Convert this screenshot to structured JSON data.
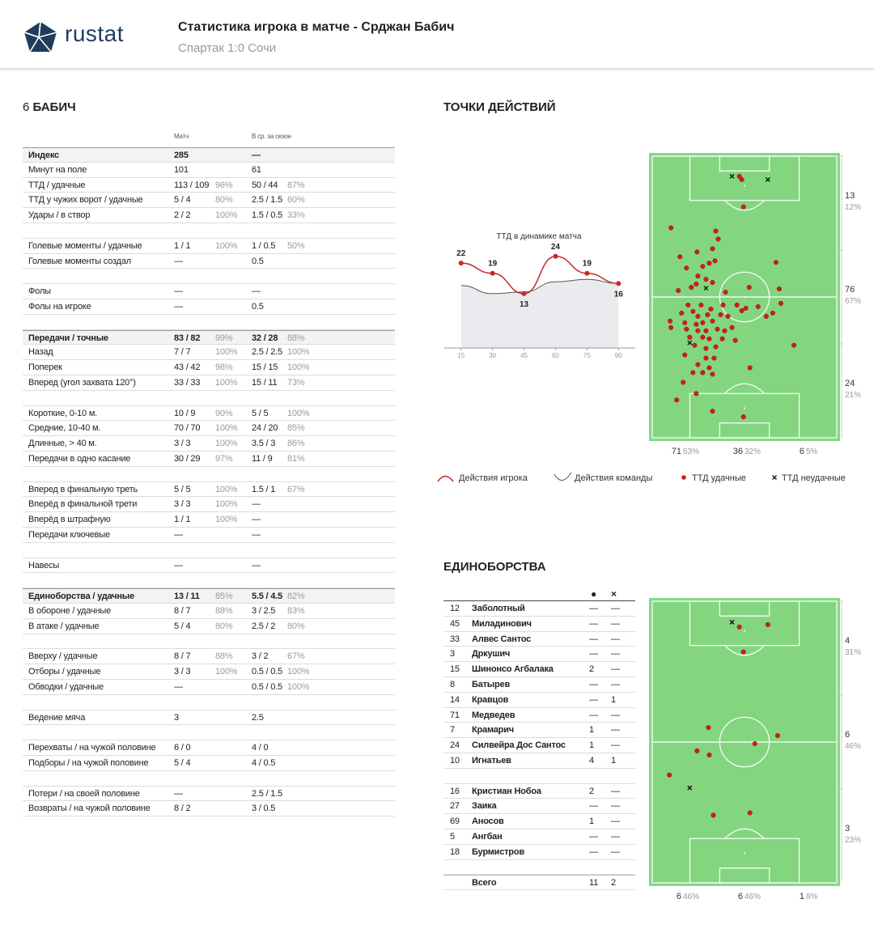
{
  "header": {
    "logo": "rustat",
    "title": "Статистика игрока в матче - Срджан Бабич",
    "subtitle": "Спартак 1:0 Сочи"
  },
  "player": {
    "number": "6",
    "name": "БАБИЧ"
  },
  "stats": {
    "columns": [
      "Матч",
      "В ср. за сезон"
    ],
    "groups": [
      [
        {
          "label": "Индекс",
          "match": "285",
          "season": "—",
          "bold": true
        },
        {
          "label": "Минут на поле",
          "match": "101",
          "season": "61"
        },
        {
          "label": "ТТД / удачные",
          "match": "113 / 109",
          "match_pct": "96%",
          "season": "50 / 44",
          "season_pct": "87%"
        },
        {
          "label": "ТТД у чужих ворот / удачные",
          "match": "5 / 4",
          "match_pct": "80%",
          "season": "2.5 / 1.5",
          "season_pct": "60%"
        },
        {
          "label": "Удары / в створ",
          "match": "2 / 2",
          "match_pct": "100%",
          "season": "1.5 / 0.5",
          "season_pct": "33%"
        }
      ],
      [
        {
          "label": "Голевые моменты / удачные",
          "match": "1 / 1",
          "match_pct": "100%",
          "season": "1 / 0.5",
          "season_pct": "50%"
        },
        {
          "label": "Голевые моменты создал",
          "match": "—",
          "season": "0.5"
        }
      ],
      [
        {
          "label": "Фолы",
          "match": "—",
          "season": "—"
        },
        {
          "label": "Фолы на игроке",
          "match": "—",
          "season": "0.5"
        }
      ],
      [
        {
          "label": "Передачи / точные",
          "match": "83 / 82",
          "match_pct": "99%",
          "season": "32 / 28",
          "season_pct": "88%",
          "bold": true
        },
        {
          "label": "Назад",
          "match": "7 / 7",
          "match_pct": "100%",
          "season": "2.5 / 2.5",
          "season_pct": "100%"
        },
        {
          "label": "Поперек",
          "match": "43 / 42",
          "match_pct": "98%",
          "season": "15 / 15",
          "season_pct": "100%"
        },
        {
          "label": "Вперед (угол захвата 120°)",
          "match": "33 / 33",
          "match_pct": "100%",
          "season": "15 / 11",
          "season_pct": "73%"
        }
      ],
      [
        {
          "label": "Короткие, 0-10 м.",
          "match": "10 / 9",
          "match_pct": "90%",
          "season": "5 / 5",
          "season_pct": "100%"
        },
        {
          "label": "Средние, 10-40 м.",
          "match": "70 / 70",
          "match_pct": "100%",
          "season": "24 / 20",
          "season_pct": "85%"
        },
        {
          "label": "Длинные, > 40 м.",
          "match": "3 / 3",
          "match_pct": "100%",
          "season": "3.5 / 3",
          "season_pct": "86%"
        },
        {
          "label": "Передачи в одно касание",
          "match": "30 / 29",
          "match_pct": "97%",
          "season": "11 / 9",
          "season_pct": "81%"
        }
      ],
      [
        {
          "label": "Вперед в финальную треть",
          "match": "5 / 5",
          "match_pct": "100%",
          "season": "1.5 / 1",
          "season_pct": "67%"
        },
        {
          "label": "Вперёд в финальной трети",
          "match": "3 / 3",
          "match_pct": "100%",
          "season": "—"
        },
        {
          "label": "Вперёд в штрафную",
          "match": "1 / 1",
          "match_pct": "100%",
          "season": "—"
        },
        {
          "label": "Передачи ключевые",
          "match": "—",
          "season": "—"
        }
      ],
      [
        {
          "label": "Навесы",
          "match": "—",
          "season": "—"
        }
      ],
      [
        {
          "label": "Единоборства / удачные",
          "match": "13 / 11",
          "match_pct": "85%",
          "season": "5.5 / 4.5",
          "season_pct": "82%",
          "bold": true
        },
        {
          "label": "В обороне / удачные",
          "match": "8 / 7",
          "match_pct": "88%",
          "season": "3 / 2.5",
          "season_pct": "83%"
        },
        {
          "label": "В атаке / удачные",
          "match": "5 / 4",
          "match_pct": "80%",
          "season": "2.5 / 2",
          "season_pct": "80%"
        }
      ],
      [
        {
          "label": "Вверху / удачные",
          "match": "8 / 7",
          "match_pct": "88%",
          "season": "3 / 2",
          "season_pct": "67%"
        },
        {
          "label": "Отборы / удачные",
          "match": "3 / 3",
          "match_pct": "100%",
          "season": "0.5 / 0.5",
          "season_pct": "100%"
        },
        {
          "label": "Обводки / удачные",
          "match": "—",
          "season": "0.5 / 0.5",
          "season_pct": "100%"
        }
      ],
      [
        {
          "label": "Ведение мяча",
          "match": "3",
          "season": "2.5"
        }
      ],
      [
        {
          "label": "Перехваты / на чужой половине",
          "match": "6 / 0",
          "season": "4 / 0"
        },
        {
          "label": "Подборы / на чужой половине",
          "match": "5 / 4",
          "season": "4 / 0.5"
        }
      ],
      [
        {
          "label": "Потери / на своей половине",
          "match": "—",
          "season": "2.5 / 1.5"
        },
        {
          "label": "Возвраты / на чужой половине",
          "match": "8 / 2",
          "season": "3 / 0.5"
        }
      ]
    ]
  },
  "actions": {
    "title": "ТОЧКИ ДЕЙСТВИЙ",
    "timeline": {
      "type": "line",
      "title": "ТТД в динамике матча",
      "x": [
        15,
        30,
        45,
        60,
        75,
        90
      ],
      "xlim": [
        7,
        98
      ],
      "xticks": [
        15,
        30,
        45,
        60,
        75,
        90
      ],
      "ylim": [
        -3,
        28
      ],
      "series": [
        {
          "name": "Действия игрока",
          "color": "#c62828",
          "values": [
            22,
            19,
            13,
            24,
            19,
            16
          ]
        },
        {
          "name": "Действия команды",
          "color": "#555555",
          "values": [
            15.4,
            13,
            13.5,
            16.5,
            17.2,
            16
          ]
        }
      ]
    },
    "pitch": {
      "xlim": [
        0,
        68
      ],
      "ylim": [
        0,
        105
      ],
      "success": {
        "x": [
          32.1,
          33.6,
          33,
          6.9,
          23.4,
          24.3,
          16.5,
          22.2,
          10.2,
          21,
          23.1,
          18.6,
          12.6,
          16.8,
          19.8,
          16.2,
          22.2,
          9.6,
          14.4,
          27,
          35.7,
          45.6,
          46.8,
          13.2,
          18,
          21.6,
          26.1,
          31.2,
          33,
          34.5,
          39,
          42,
          44.4,
          47.4,
          10.8,
          15,
          16.8,
          20.4,
          25.2,
          27.9,
          6.6,
          12,
          16.2,
          18.6,
          22.2,
          6.9,
          12.6,
          16.8,
          19.8,
          24,
          26.7,
          29.4,
          13.8,
          18.6,
          21,
          25.8,
          30.6,
          15.6,
          19.8,
          23.4,
          12,
          19.8,
          22.8,
          16.8,
          21,
          15,
          18.6,
          22.2,
          36,
          52.2,
          11.4,
          16.2,
          9,
          22.2,
          33.6
        ],
        "y": [
          7.5,
          18.9,
          8.7,
          26.7,
          27.9,
          30.9,
          35.7,
          34.5,
          37.5,
          39.9,
          39,
          41.1,
          41.7,
          44.7,
          45.9,
          47.7,
          47.1,
          50.1,
          48.9,
          50.7,
          48.9,
          39.6,
          49.5,
          55.5,
          55.5,
          57,
          55.5,
          55.5,
          57.6,
          56.7,
          56.1,
          59.7,
          58.5,
          54.9,
          58.5,
          57.9,
          59.7,
          59.1,
          59.1,
          59.7,
          61.5,
          62.1,
          62.7,
          62.1,
          61.5,
          63.9,
          64.5,
          65.1,
          65.1,
          64.5,
          65.1,
          63.9,
          67.5,
          67.5,
          68.1,
          68.1,
          68.7,
          70.5,
          71.7,
          71.1,
          74.1,
          75.3,
          75.3,
          77.7,
          78.9,
          80.7,
          80.7,
          81.3,
          78.9,
          70.5,
          84.3,
          88.5,
          90.9,
          95.1,
          97.2
        ]
      },
      "fail": {
        "x": [
          29.4,
          42.6,
          19.8,
          13.8
        ],
        "y": [
          7.5,
          8.7,
          49.2,
          69.6
        ]
      },
      "zones_right": [
        {
          "count": "13",
          "pct": "12%"
        },
        {
          "count": "76",
          "pct": "67%"
        },
        {
          "count": "24",
          "pct": "21%"
        }
      ],
      "zones_bottom": [
        {
          "count": "71",
          "pct": "63%"
        },
        {
          "count": "36",
          "pct": "32%"
        },
        {
          "count": "6",
          "pct": "5%"
        }
      ]
    },
    "legend": [
      "Действия игрока",
      "Действия команды",
      "ТТД удачные",
      "ТТД неудачные"
    ]
  },
  "duels": {
    "title": "ЕДИНОБОРСТВА",
    "columns": [
      "●",
      "×"
    ],
    "groups": [
      [
        {
          "number": "12",
          "name": "Заболотный",
          "won": "—",
          "lost": "—"
        },
        {
          "number": "45",
          "name": "Миладинович",
          "won": "—",
          "lost": "—"
        },
        {
          "number": "33",
          "name": "Алвес Сантос",
          "won": "—",
          "lost": "—"
        },
        {
          "number": "3",
          "name": "Дркушич",
          "won": "—",
          "lost": "—"
        },
        {
          "number": "15",
          "name": "Шинонсо Агбалака",
          "won": "2",
          "lost": "—"
        },
        {
          "number": "8",
          "name": "Батырев",
          "won": "—",
          "lost": "—"
        },
        {
          "number": "14",
          "name": "Кравцов",
          "won": "—",
          "lost": "1"
        },
        {
          "number": "71",
          "name": "Медведев",
          "won": "—",
          "lost": "—"
        },
        {
          "number": "7",
          "name": "Крамарич",
          "won": "1",
          "lost": "—"
        },
        {
          "number": "24",
          "name": "Силвейра Дос Сантос",
          "won": "1",
          "lost": "—"
        },
        {
          "number": "10",
          "name": "Игнатьев",
          "won": "4",
          "lost": "1"
        }
      ],
      [
        {
          "number": "16",
          "name": "Кристиан Нобоа",
          "won": "2",
          "lost": "—"
        },
        {
          "number": "27",
          "name": "Заика",
          "won": "—",
          "lost": "—"
        },
        {
          "number": "69",
          "name": "Аносов",
          "won": "1",
          "lost": "—"
        },
        {
          "number": "5",
          "name": "Ангбан",
          "won": "—",
          "lost": "—"
        },
        {
          "number": "18",
          "name": "Бурмистров",
          "won": "—",
          "lost": "—"
        }
      ]
    ],
    "total": {
      "label": "Всего",
      "won": "11",
      "lost": "2"
    },
    "pitch": {
      "xlim": [
        0,
        68
      ],
      "ylim": [
        0,
        105
      ],
      "success": {
        "x": [
          32.1,
          42.6,
          33.6,
          20.7,
          16.5,
          21,
          37.8,
          46.2,
          6.3,
          22.5,
          36
        ],
        "y": [
          9.6,
          8.7,
          18.9,
          47.1,
          55.8,
          57.3,
          53.1,
          50.1,
          64.8,
          79.8,
          78.9
        ]
      },
      "fail": {
        "x": [
          29.4,
          13.8
        ],
        "y": [
          7.8,
          69.6
        ]
      },
      "zones_right": [
        {
          "count": "4",
          "pct": "31%"
        },
        {
          "count": "6",
          "pct": "46%"
        },
        {
          "count": "3",
          "pct": "23%"
        }
      ],
      "zones_bottom": [
        {
          "count": "6",
          "pct": "46%"
        },
        {
          "count": "6",
          "pct": "46%"
        },
        {
          "count": "1",
          "pct": "8%"
        }
      ]
    }
  }
}
